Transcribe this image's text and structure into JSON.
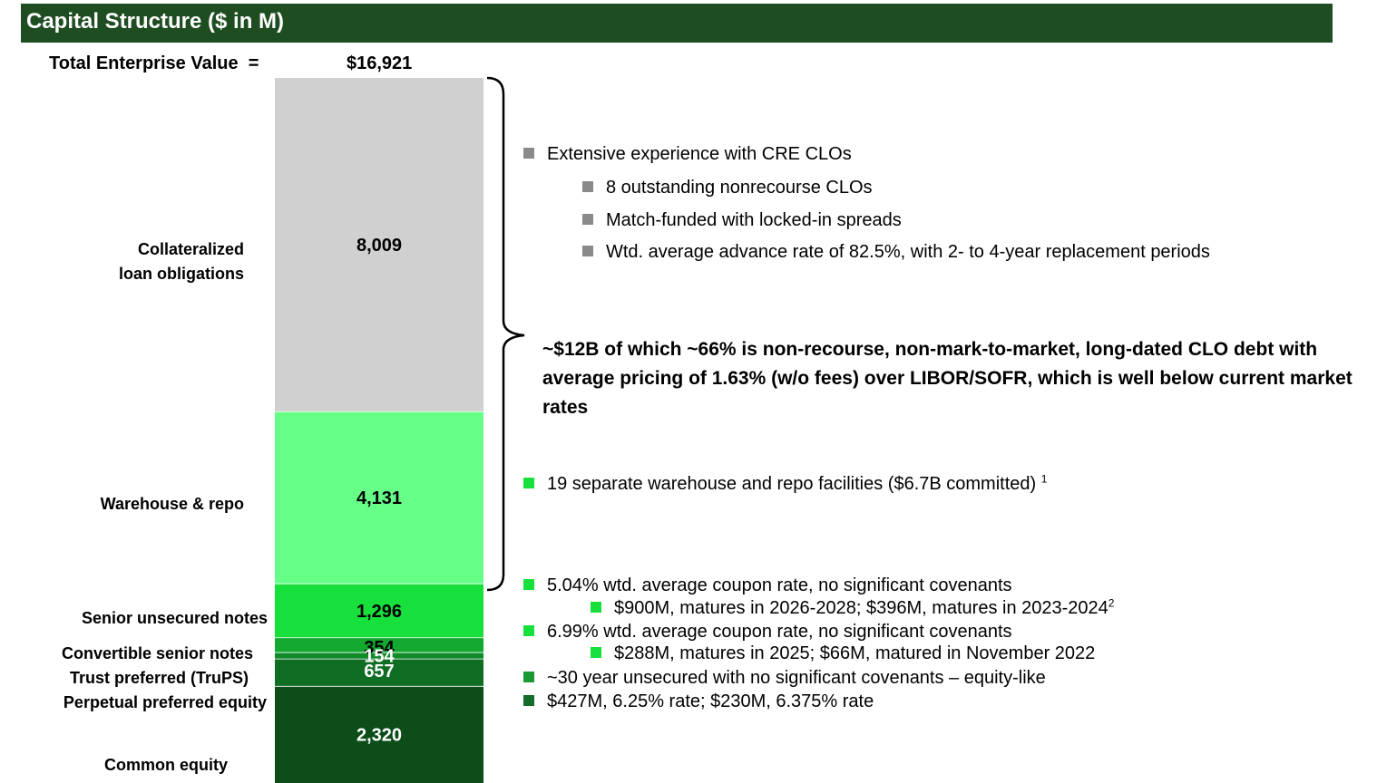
{
  "header": {
    "title": "Capital Structure ($ in M)",
    "bar_color": "#1d4d21"
  },
  "total": {
    "label": "Total Enterprise Value",
    "equals": "=",
    "value": "$16,921"
  },
  "chart_data": {
    "type": "bar",
    "stacked": true,
    "orientation": "vertical",
    "total": 16921,
    "segments": [
      {
        "name": "Collateralized loan obligations",
        "value": 8009,
        "label": "8,009",
        "color": "#d0d0d0",
        "label_color": "#000000"
      },
      {
        "name": "Warehouse & repo",
        "value": 4131,
        "label": "4,131",
        "color": "#66ff88",
        "label_color": "#000000"
      },
      {
        "name": "Senior unsecured notes",
        "value": 1296,
        "label": "1,296",
        "color": "#17e03c",
        "label_color": "#000000"
      },
      {
        "name": "Convertible senior notes",
        "value": 354,
        "label": "354",
        "color": "#13a830",
        "label_color": "#000000"
      },
      {
        "name": "Trust preferred (TruPS)",
        "value": 154,
        "label": "154",
        "color": "#118a2a",
        "label_color": "#ffffff"
      },
      {
        "name": "Perpetual preferred equity",
        "value": 657,
        "label": "657",
        "color": "#0f6e24",
        "label_color": "#ffffff"
      },
      {
        "name": "Common equity",
        "value": 2320,
        "label": "2,320",
        "color": "#0c4d1a",
        "label_color": "#ffffff"
      }
    ]
  },
  "categories": {
    "clo": [
      "Collateralized",
      "loan obligations"
    ],
    "warehouse": "Warehouse & repo",
    "senior": "Senior unsecured notes",
    "convertible": "Convertible senior notes",
    "trups": "Trust preferred (TruPS)",
    "perpetual": "Perpetual preferred equity",
    "common": "Common equity"
  },
  "bullets": {
    "clo_main": "Extensive experience with CRE CLOs",
    "clo_sub1": "8 outstanding nonrecourse CLOs",
    "clo_sub2": "Match-funded with locked-in spreads",
    "clo_sub3": "Wtd. average advance rate of 82.5%, with 2- to 4-year replacement periods",
    "callout": "~$12B of which ~66% is non-recourse, non-mark-to-market, long-dated CLO debt with average pricing of 1.63% (w/o fees) over LIBOR/SOFR, which is well below current market rates",
    "warehouse": "19 separate warehouse and repo facilities ($6.7B committed)",
    "warehouse_sup": "1",
    "senior_main": "5.04% wtd. average coupon rate, no significant covenants",
    "senior_sub": "$900M, matures in 2026-2028; $396M, matures in 2023-2024",
    "senior_sub_sup": "2",
    "conv_main": "6.99% wtd. average coupon rate, no significant covenants",
    "conv_sub": "$288M, matures in 2025; $66M, matured in November 2022",
    "trups": "~30 year unsecured with no significant covenants – equity-like",
    "perpetual": "$427M, 6.25% rate; $230M, 6.375% rate"
  },
  "colors": {
    "gray_square": "#8a8a8a",
    "light_green_square": "#17e03c",
    "mid_green_square": "#1a9a34",
    "dark_green_square": "#136c2a"
  }
}
